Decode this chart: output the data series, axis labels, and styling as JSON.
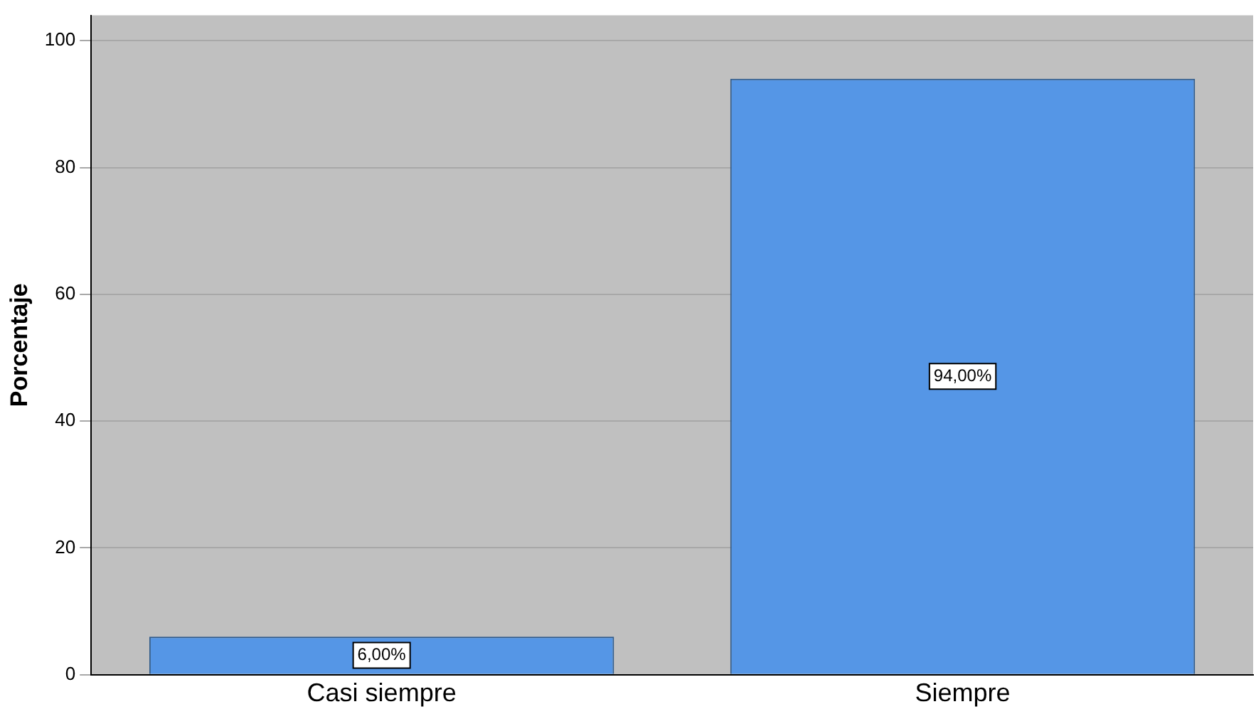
{
  "chart_data": {
    "type": "bar",
    "ylabel": "Porcentaje",
    "categories": [
      "Casi siempre",
      "Siempre"
    ],
    "values": [
      6,
      94
    ],
    "color": "#5596e6",
    "value_labels": [
      "6,00%",
      "94,00%"
    ],
    "ylim": [
      0,
      104
    ],
    "yticks": [
      0,
      20,
      40,
      60,
      80,
      100
    ],
    "grid": "y"
  }
}
